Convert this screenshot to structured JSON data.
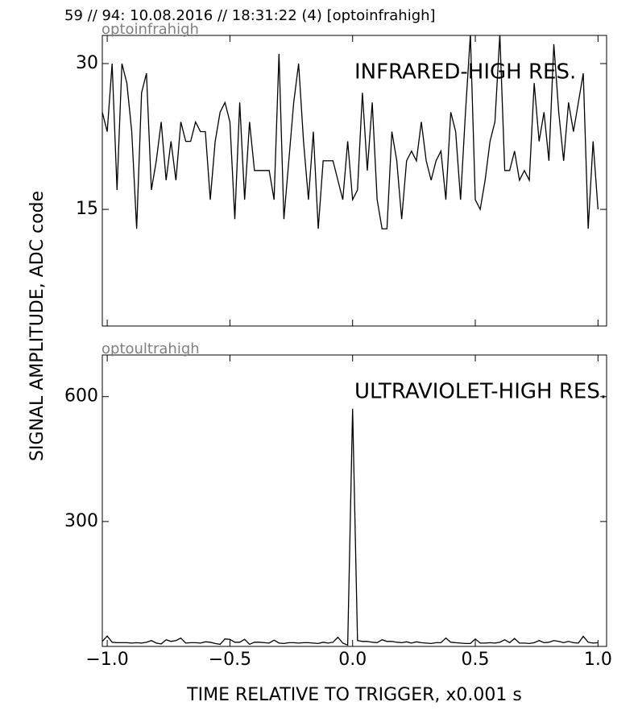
{
  "header": "59 // 94:   10.08.2016 // 18:31:22 (4)  [optoinfrahigh]",
  "y_label": "SIGNAL AMPLITUDE,  ADC code",
  "x_label": "TIME RELATIVE TO TRIGGER,   x0.001 s",
  "chart_data": [
    {
      "type": "line",
      "title": "optoinfrahigh",
      "annotation": "INFRARED-HIGH RES.",
      "color": "#000000",
      "x": [
        -1.02,
        -1.0,
        -0.98,
        -0.96,
        -0.94,
        -0.92,
        -0.9,
        -0.88,
        -0.86,
        -0.84,
        -0.82,
        -0.8,
        -0.78,
        -0.76,
        -0.74,
        -0.72,
        -0.7,
        -0.68,
        -0.66,
        -0.64,
        -0.62,
        -0.6,
        -0.58,
        -0.56,
        -0.54,
        -0.52,
        -0.5,
        -0.48,
        -0.46,
        -0.44,
        -0.42,
        -0.4,
        -0.38,
        -0.36,
        -0.34,
        -0.32,
        -0.3,
        -0.28,
        -0.26,
        -0.24,
        -0.22,
        -0.2,
        -0.18,
        -0.16,
        -0.14,
        -0.12,
        -0.1,
        -0.08,
        -0.06,
        -0.04,
        -0.02,
        0,
        0.02,
        0.04,
        0.06,
        0.08,
        0.1,
        0.12,
        0.14,
        0.16,
        0.18,
        0.2,
        0.22,
        0.24,
        0.26,
        0.28,
        0.3,
        0.32,
        0.34,
        0.36,
        0.38,
        0.4,
        0.42,
        0.44,
        0.46,
        0.48,
        0.5,
        0.52,
        0.54,
        0.56,
        0.58,
        0.6,
        0.62,
        0.64,
        0.66,
        0.68,
        0.7,
        0.72,
        0.74,
        0.76,
        0.78,
        0.8,
        0.82,
        0.84,
        0.86,
        0.88,
        0.9,
        0.92,
        0.94,
        0.96,
        0.98,
        1.0
      ],
      "values": [
        25,
        23,
        30,
        17,
        30,
        28,
        23,
        13,
        27,
        29,
        17,
        20,
        24,
        18,
        22,
        18,
        24,
        22,
        22,
        24,
        23,
        23,
        16,
        22,
        25,
        26,
        24,
        14,
        26,
        16,
        24,
        19,
        19,
        19,
        19,
        16,
        31,
        14,
        20,
        26,
        30,
        22,
        16,
        23,
        13,
        20,
        20,
        20,
        18,
        16,
        22,
        16,
        17,
        27,
        19,
        26,
        16,
        13,
        13,
        23,
        20,
        14,
        20,
        21,
        20,
        24,
        20,
        18,
        20,
        21,
        16,
        25,
        23,
        16,
        25,
        33,
        16,
        15,
        18,
        22,
        24,
        33,
        19,
        19,
        21,
        18,
        19,
        18,
        28,
        22,
        25,
        20,
        32,
        25,
        20,
        26,
        23,
        26,
        29,
        13,
        22,
        15
      ],
      "xlim": [
        -1.02,
        1.035
      ],
      "ylim": [
        3,
        32.9
      ],
      "xticks": [
        -1,
        -0.5,
        0,
        0.5,
        1
      ],
      "yticks": [
        15,
        30
      ]
    },
    {
      "type": "line",
      "title": "optoultrahigh",
      "annotation": "ULTRAVIOLET-HIGH RES.",
      "color": "#000000",
      "x": [
        -1.02,
        -1.0,
        -0.98,
        -0.96,
        -0.94,
        -0.92,
        -0.9,
        -0.88,
        -0.86,
        -0.84,
        -0.82,
        -0.8,
        -0.78,
        -0.76,
        -0.74,
        -0.72,
        -0.7,
        -0.68,
        -0.66,
        -0.64,
        -0.62,
        -0.6,
        -0.58,
        -0.56,
        -0.54,
        -0.52,
        -0.5,
        -0.48,
        -0.46,
        -0.44,
        -0.42,
        -0.4,
        -0.38,
        -0.36,
        -0.34,
        -0.32,
        -0.3,
        -0.28,
        -0.26,
        -0.24,
        -0.22,
        -0.2,
        -0.18,
        -0.16,
        -0.14,
        -0.12,
        -0.1,
        -0.08,
        -0.06,
        -0.04,
        -0.02,
        0,
        0.02,
        0.04,
        0.06,
        0.08,
        0.1,
        0.12,
        0.14,
        0.16,
        0.18,
        0.2,
        0.22,
        0.24,
        0.26,
        0.28,
        0.3,
        0.32,
        0.34,
        0.36,
        0.38,
        0.4,
        0.42,
        0.44,
        0.46,
        0.48,
        0.5,
        0.52,
        0.54,
        0.56,
        0.58,
        0.6,
        0.62,
        0.64,
        0.66,
        0.68,
        0.7,
        0.72,
        0.74,
        0.76,
        0.78,
        0.8,
        0.82,
        0.84,
        0.86,
        0.88,
        0.9,
        0.92,
        0.94,
        0.96,
        0.98,
        1.0
      ],
      "values": [
        12,
        25,
        10,
        9,
        9,
        9,
        8,
        9,
        8,
        10,
        14,
        8,
        6,
        16,
        12,
        14,
        20,
        8,
        9,
        9,
        8,
        11,
        10,
        7,
        5,
        18,
        17,
        10,
        10,
        17,
        5,
        10,
        10,
        9,
        8,
        15,
        8,
        7,
        9,
        9,
        8,
        9,
        9,
        8,
        7,
        10,
        8,
        10,
        22,
        8,
        3,
        571,
        14,
        12,
        12,
        10,
        9,
        16,
        12,
        12,
        10,
        9,
        11,
        8,
        11,
        9,
        8,
        7,
        9,
        9,
        20,
        10,
        9,
        8,
        7,
        7,
        18,
        8,
        8,
        9,
        8,
        10,
        16,
        9,
        19,
        8,
        8,
        7,
        9,
        14,
        9,
        10,
        14,
        12,
        9,
        12,
        9,
        8,
        24,
        10,
        8,
        9
      ],
      "xlim": [
        -1.02,
        1.035
      ],
      "ylim": [
        0,
        700
      ],
      "xticks": [
        {
          "value": -1,
          "label": "−1.0"
        },
        {
          "value": -0.5,
          "label": "−0.5"
        },
        {
          "value": 0,
          "label": "0.0"
        },
        {
          "value": 0.5,
          "label": "0.5"
        },
        {
          "value": 1,
          "label": "1.0"
        }
      ],
      "yticks": [
        300,
        600
      ]
    }
  ]
}
